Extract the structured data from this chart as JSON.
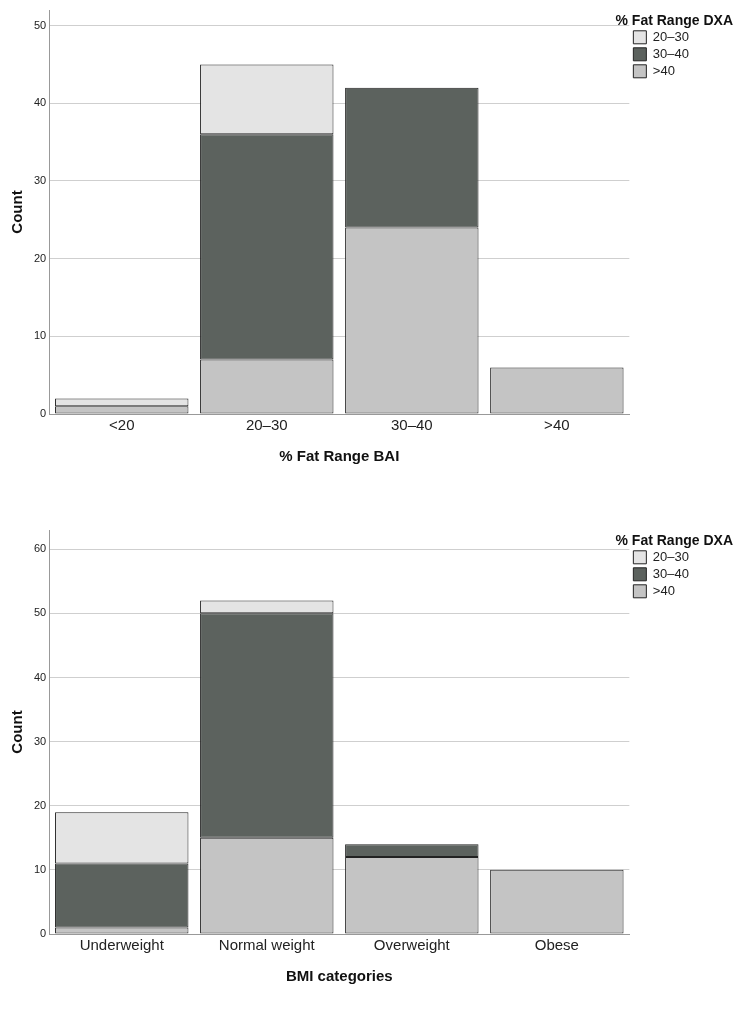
{
  "chart_data": [
    {
      "type": "bar",
      "stacked": true,
      "xlabel": "% Fat Range BAI",
      "ylabel": "Count",
      "legend_title": "% Fat Range DXA",
      "legend": "top right",
      "grid": "y",
      "categories": [
        "<20",
        "20–30",
        "30–40",
        ">40"
      ],
      "ylim": [
        0,
        52
      ],
      "yticks": [
        0,
        10,
        20,
        30,
        40,
        50
      ],
      "series": [
        {
          "name": ">40",
          "color": "#c4c4c4",
          "values": [
            1,
            7,
            24,
            6
          ]
        },
        {
          "name": "30–40",
          "color": "#5c625e",
          "values": [
            0,
            29,
            18,
            0
          ]
        },
        {
          "name": "20–30",
          "color": "#e4e4e4",
          "values": [
            1,
            9,
            0,
            0
          ]
        }
      ]
    },
    {
      "type": "bar",
      "stacked": true,
      "xlabel": "BMI categories",
      "ylabel": "Count",
      "legend_title": "% Fat Range DXA",
      "legend": "top right",
      "grid": "y",
      "categories": [
        "Underweight",
        "Normal weight",
        "Overweight",
        "Obese"
      ],
      "ylim": [
        0,
        63
      ],
      "yticks": [
        0,
        10,
        20,
        30,
        40,
        50,
        60
      ],
      "series": [
        {
          "name": ">40",
          "color": "#c4c4c4",
          "values": [
            1,
            15,
            12,
            10
          ]
        },
        {
          "name": "30–40",
          "color": "#5c625e",
          "values": [
            10,
            35,
            2,
            0
          ]
        },
        {
          "name": "20–30",
          "color": "#e4e4e4",
          "values": [
            8,
            2,
            0,
            0
          ]
        }
      ]
    }
  ]
}
